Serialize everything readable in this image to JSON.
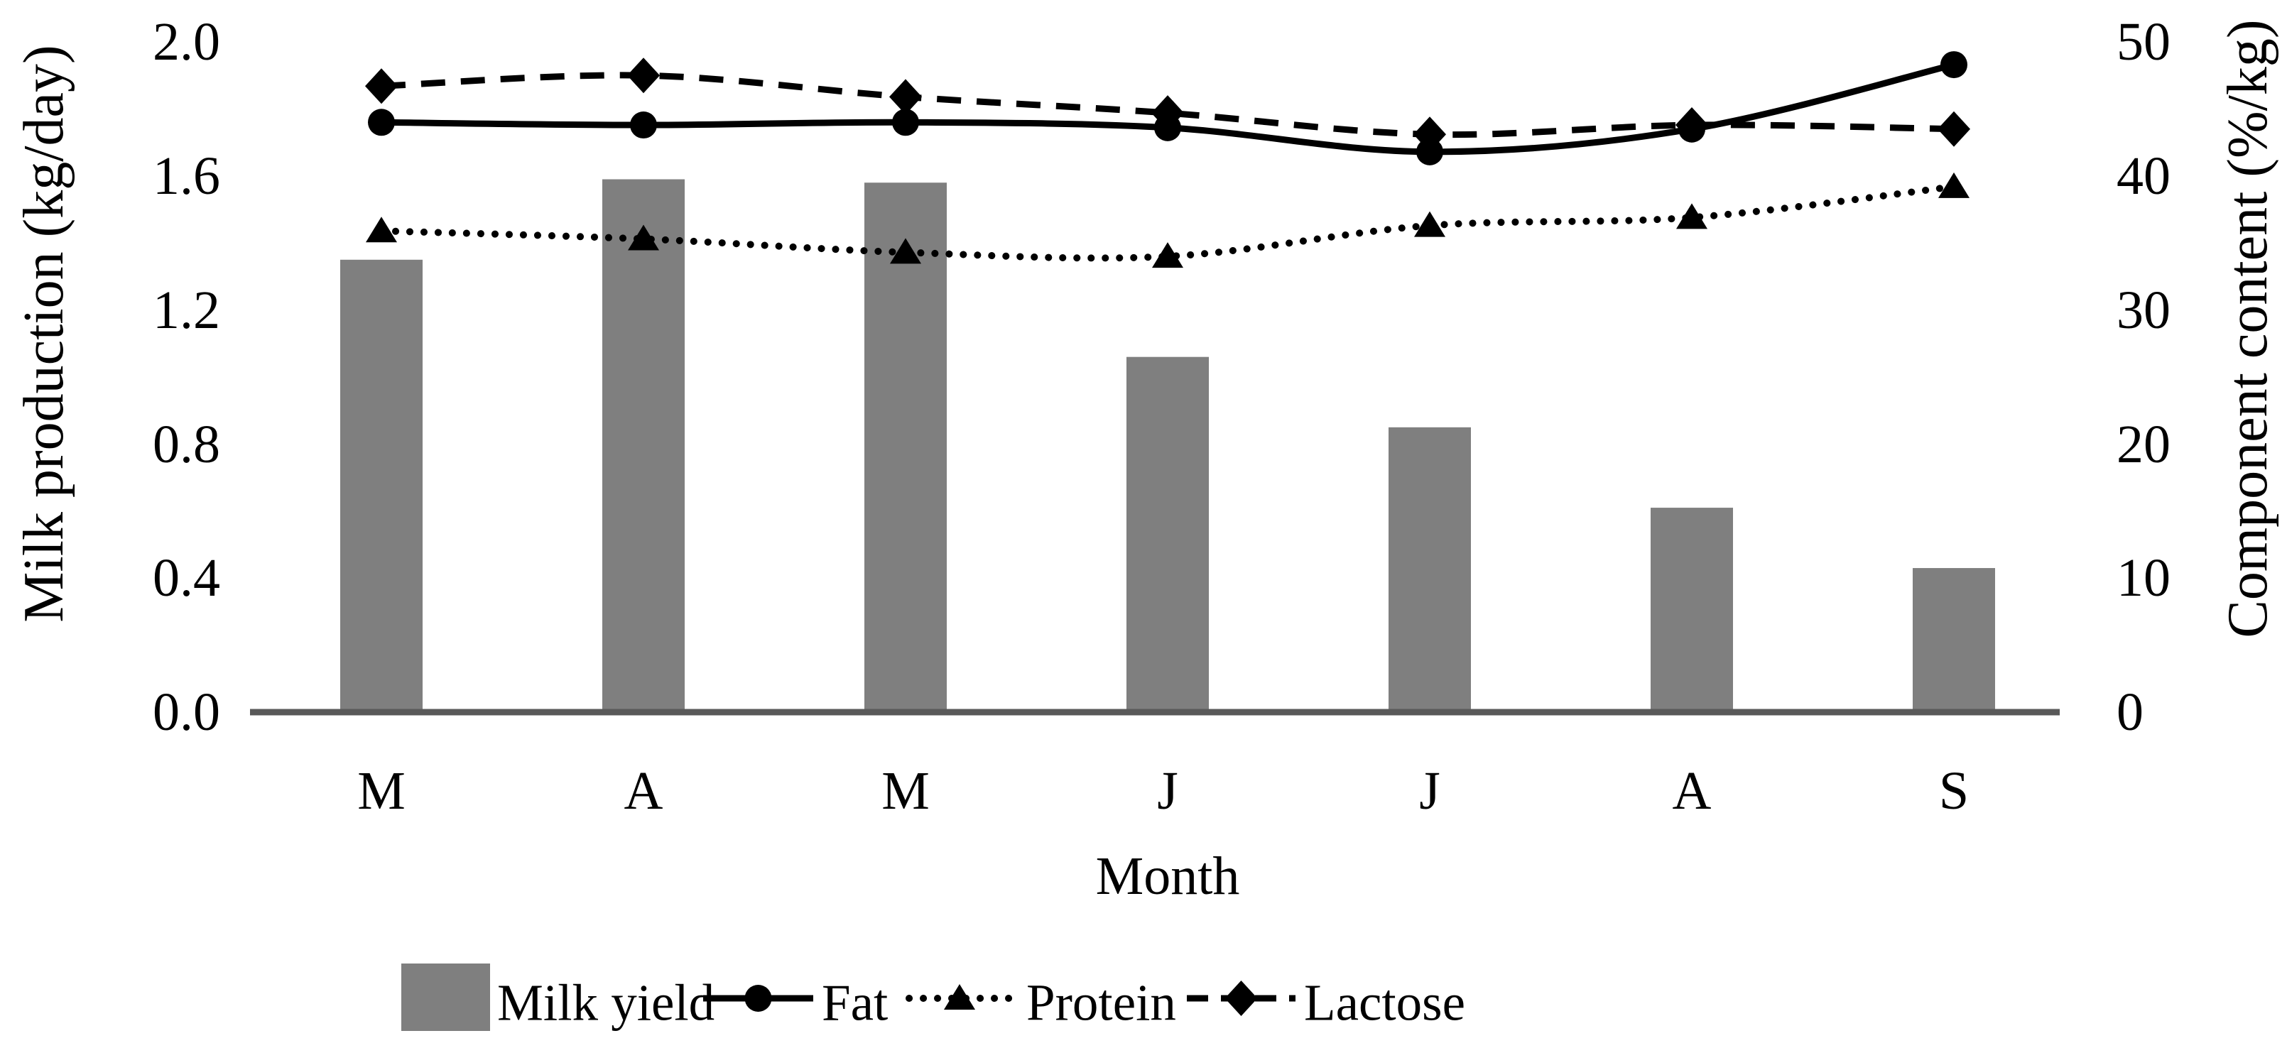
{
  "chart_data": {
    "type": "combo",
    "categories": [
      "M",
      "A",
      "M",
      "J",
      "J",
      "A",
      "S"
    ],
    "series": [
      {
        "name": "Milk yield",
        "type": "bar",
        "axis": "left",
        "color": "#7f7f7f",
        "marker": "none",
        "values": [
          1.35,
          1.59,
          1.58,
          1.06,
          0.85,
          0.61,
          0.43
        ]
      },
      {
        "name": "Fat",
        "type": "line",
        "axis": "right",
        "color": "#000000",
        "style": "solid",
        "marker": "circle",
        "values": [
          44.0,
          43.8,
          44.0,
          43.6,
          41.8,
          43.5,
          48.3
        ]
      },
      {
        "name": "Protein",
        "type": "line",
        "axis": "right",
        "color": "#000000",
        "style": "dotted",
        "marker": "triangle",
        "values": [
          35.9,
          35.3,
          34.3,
          34.0,
          36.3,
          36.9,
          39.2
        ]
      },
      {
        "name": "Lactose",
        "type": "line",
        "axis": "right",
        "color": "#000000",
        "style": "dashed",
        "marker": "diamond",
        "values": [
          46.7,
          47.5,
          45.9,
          44.7,
          43.1,
          43.8,
          43.5
        ]
      }
    ],
    "left_axis": {
      "label": "Milk production (kg/day)",
      "ticks": [
        "0.0",
        "0.4",
        "0.8",
        "1.2",
        "1.6",
        "2.0"
      ],
      "range": [
        0,
        2
      ]
    },
    "right_axis": {
      "label": "Component content (%/kg)",
      "ticks": [
        "0",
        "10",
        "20",
        "30",
        "40",
        "50"
      ],
      "range": [
        0,
        50
      ]
    },
    "x_axis": {
      "label": "Month"
    },
    "grid": false,
    "legend_position": "bottom",
    "style_colors": {
      "bar_fill": "#7f7f7f",
      "axis_line": "#595959",
      "line_color": "#000000",
      "background": "#ffffff"
    }
  }
}
